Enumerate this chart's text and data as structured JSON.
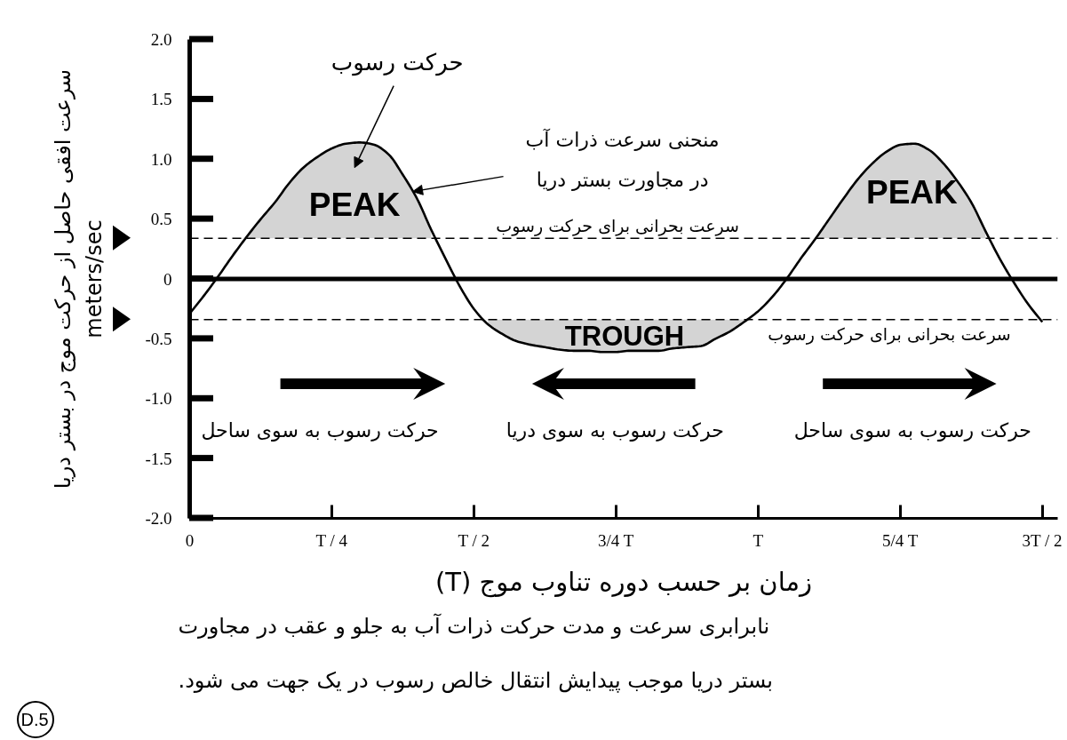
{
  "chart_data": {
    "type": "line",
    "xlabel": "زمان بر حسب دوره تناوب موج (T)",
    "ylabel": "سرعت افقی حاصل از حرکت موج در بستر دریا\nmeters/sec",
    "categories": [
      "0",
      null,
      null,
      null,
      null,
      null,
      null,
      null,
      null,
      null,
      "T / 4",
      null,
      null,
      null,
      null,
      null,
      null,
      null,
      null,
      null,
      "T / 2",
      null,
      null,
      null,
      null,
      null,
      null,
      null,
      null,
      null,
      "3/4 T",
      null,
      null,
      null,
      null,
      null,
      null,
      null,
      null,
      null,
      "T",
      null,
      null,
      null,
      null,
      null,
      null,
      null,
      null,
      null,
      "5/4 T",
      null,
      null,
      null,
      null,
      null,
      null,
      null,
      null,
      null,
      "3T / 2"
    ],
    "series": [
      {
        "color": "#000000",
        "values": [
          -0.29,
          -0.14,
          0.02,
          0.19,
          0.35,
          0.5,
          0.64,
          0.8,
          0.93,
          1.02,
          1.09,
          1.13,
          1.14,
          1.12,
          1.04,
          0.87,
          0.67,
          0.41,
          0.17,
          -0.06,
          -0.25,
          -0.38,
          -0.46,
          -0.52,
          -0.55,
          -0.57,
          -0.59,
          -0.6,
          -0.6,
          -0.61,
          -0.61,
          -0.6,
          -0.6,
          -0.6,
          -0.58,
          -0.57,
          -0.56,
          -0.5,
          -0.44,
          -0.36,
          -0.27,
          -0.15,
          0,
          0.17,
          0.33,
          0.5,
          0.67,
          0.83,
          0.96,
          1.06,
          1.12,
          1.13,
          1.08,
          0.97,
          0.82,
          0.64,
          0.4,
          0.17,
          -0.03,
          -0.21,
          -0.36
        ],
        "lower": [
          null,
          null,
          null,
          null,
          0.34,
          0.34,
          0.34,
          0.34,
          0.34,
          0.34,
          0.34,
          0.34,
          0.34,
          0.34,
          0.34,
          0.34,
          0.34,
          0.34,
          null,
          null,
          null,
          -0.38,
          -0.46,
          -0.52,
          -0.55,
          -0.57,
          -0.59,
          -0.6,
          -0.6,
          -0.61,
          -0.61,
          -0.6,
          -0.6,
          -0.6,
          -0.58,
          -0.57,
          -0.56,
          -0.5,
          -0.44,
          -0.36,
          null,
          null,
          null,
          null,
          0.33,
          0.34,
          0.34,
          0.34,
          0.34,
          0.34,
          0.34,
          0.34,
          0.34,
          0.34,
          0.34,
          0.34,
          0.34,
          null,
          null,
          null,
          null
        ],
        "upper": [
          null,
          null,
          null,
          null,
          0.35,
          0.5,
          0.64,
          0.8,
          0.93,
          1.02,
          1.09,
          1.13,
          1.14,
          1.12,
          1.04,
          0.87,
          0.67,
          0.41,
          null,
          null,
          null,
          -0.34,
          -0.34,
          -0.34,
          -0.34,
          -0.34,
          -0.34,
          -0.34,
          -0.34,
          -0.34,
          -0.34,
          -0.34,
          -0.34,
          -0.34,
          -0.34,
          -0.34,
          -0.34,
          -0.34,
          -0.34,
          -0.34,
          null,
          null,
          null,
          null,
          0.33,
          0.5,
          0.67,
          0.83,
          0.96,
          1.06,
          1.12,
          1.13,
          1.08,
          0.97,
          0.82,
          0.64,
          0.4,
          null,
          null,
          null,
          null
        ]
      }
    ],
    "ylim": [
      -2,
      2
    ],
    "yticks": [
      {
        "value": -2,
        "label": "-2.0"
      },
      {
        "value": -1.5,
        "label": "-1.5"
      },
      {
        "value": -1,
        "label": "-1.0"
      },
      {
        "value": -0.5,
        "label": "-0.5"
      },
      0,
      {
        "value": 0.5,
        "label": "0.5"
      },
      {
        "value": 1,
        "label": "1.0"
      },
      {
        "value": 1.5,
        "label": "1.5"
      },
      {
        "value": 2,
        "label": "2.0"
      }
    ],
    "ref_lines": [
      {
        "axis": "y",
        "value": 0,
        "line_style": "solid"
      },
      {
        "axis": "y",
        "value": 0.34,
        "label": "سرعت بحرانی برای حرکت رسوب",
        "line_style": "dashed"
      },
      {
        "axis": "y",
        "value": -0.34,
        "label": "سرعت بحرانی برای حرکت رسوب",
        "line_style": "dashed"
      }
    ],
    "annotations": [
      "حرکت رسوب",
      "منحنی سرعت ذرات آب\nدر مجاورت بستر دریا",
      "PEAK",
      "PEAK",
      "TROUGH",
      "حرکت رسوب به سوی ساحل",
      "حرکت رسوب به سوی دریا",
      "حرکت رسوب به سوی ساحل",
      "نابرابری سرعت و مدت حرکت ذرات آب به جلو و عقب در مجاورت\nبستر دریا موجب پیدایش انتقال خالص رسوب در یک جهت می شود.",
      "D.5"
    ],
    "grid": false
  }
}
